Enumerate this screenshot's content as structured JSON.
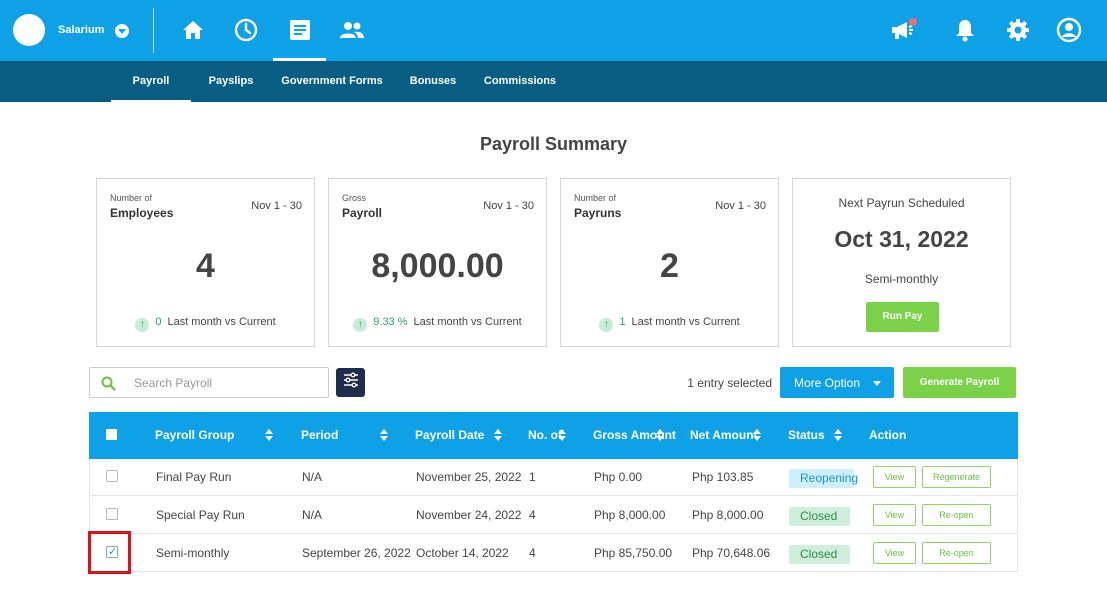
{
  "header": {
    "company_name": "Salarium",
    "nav_icons": [
      "home-icon",
      "clock-icon",
      "document-icon",
      "people-icon"
    ],
    "right_icons": [
      "megaphone-icon",
      "bell-icon",
      "gear-icon",
      "user-icon"
    ],
    "active_nav": "document-icon",
    "colors": {
      "primary": "#0ea1e6",
      "subnav": "#085d84",
      "green": "#7bd148",
      "navy": "#1f2d4d"
    }
  },
  "subnav": {
    "tabs": [
      {
        "label": "Payroll",
        "active": true
      },
      {
        "label": "Payslips",
        "active": false
      },
      {
        "label": "Government Forms",
        "active": false
      },
      {
        "label": "Bonuses",
        "active": false
      },
      {
        "label": "Commissions",
        "active": false
      }
    ]
  },
  "page_title": "Payroll Summary",
  "cards": [
    {
      "label_small": "Number of",
      "label_main": "Employees",
      "range": "Nov 1 - 30",
      "value": "4",
      "change": "0",
      "change_note": "Last month vs Current"
    },
    {
      "label_small": "Gross",
      "label_main": "Payroll",
      "range": "Nov 1 - 30",
      "value": "8,000.00",
      "change": "9.33 %",
      "change_note": "Last month vs Current"
    },
    {
      "label_small": "Number of",
      "label_main": "Payruns",
      "range": "Nov 1 - 30",
      "value": "2",
      "change": "1",
      "change_note": "Last month vs Current"
    }
  ],
  "next_payrun": {
    "label": "Next Payrun Scheduled",
    "date": "Oct 31, 2022",
    "frequency": "Semi-monthly",
    "button": "Run Pay"
  },
  "toolbar": {
    "search_placeholder": "Search Payroll",
    "selected_text": "1 entry selected",
    "more_option": "More Option",
    "generate": "Generate Payroll"
  },
  "table": {
    "columns": [
      "Payroll Group",
      "Period",
      "Payroll Date",
      "No. of",
      "Gross Amount",
      "Net Amount",
      "Status",
      "Action"
    ],
    "rows": [
      {
        "checked": false,
        "group": "Final Pay Run",
        "period": "N/A",
        "date": "November 25, 2022",
        "count": "1",
        "gross": "Php 0.00",
        "net": "Php 103.85",
        "status": "Reopening",
        "action1": "View",
        "action2": "Regenerate"
      },
      {
        "checked": false,
        "group": "Special Pay Run",
        "period": "N/A",
        "date": "November 24, 2022",
        "count": "4",
        "gross": "Php 8,000.00",
        "net": "Php 8,000.00",
        "status": "Closed",
        "action1": "View",
        "action2": "Re-open"
      },
      {
        "checked": true,
        "group": "Semi-monthly",
        "period": "September 26, 2022",
        "date": "October 14, 2022",
        "count": "4",
        "gross": "Php 85,750.00",
        "net": "Php 70,648.06",
        "status": "Closed",
        "action1": "View",
        "action2": "Re-open"
      }
    ]
  }
}
